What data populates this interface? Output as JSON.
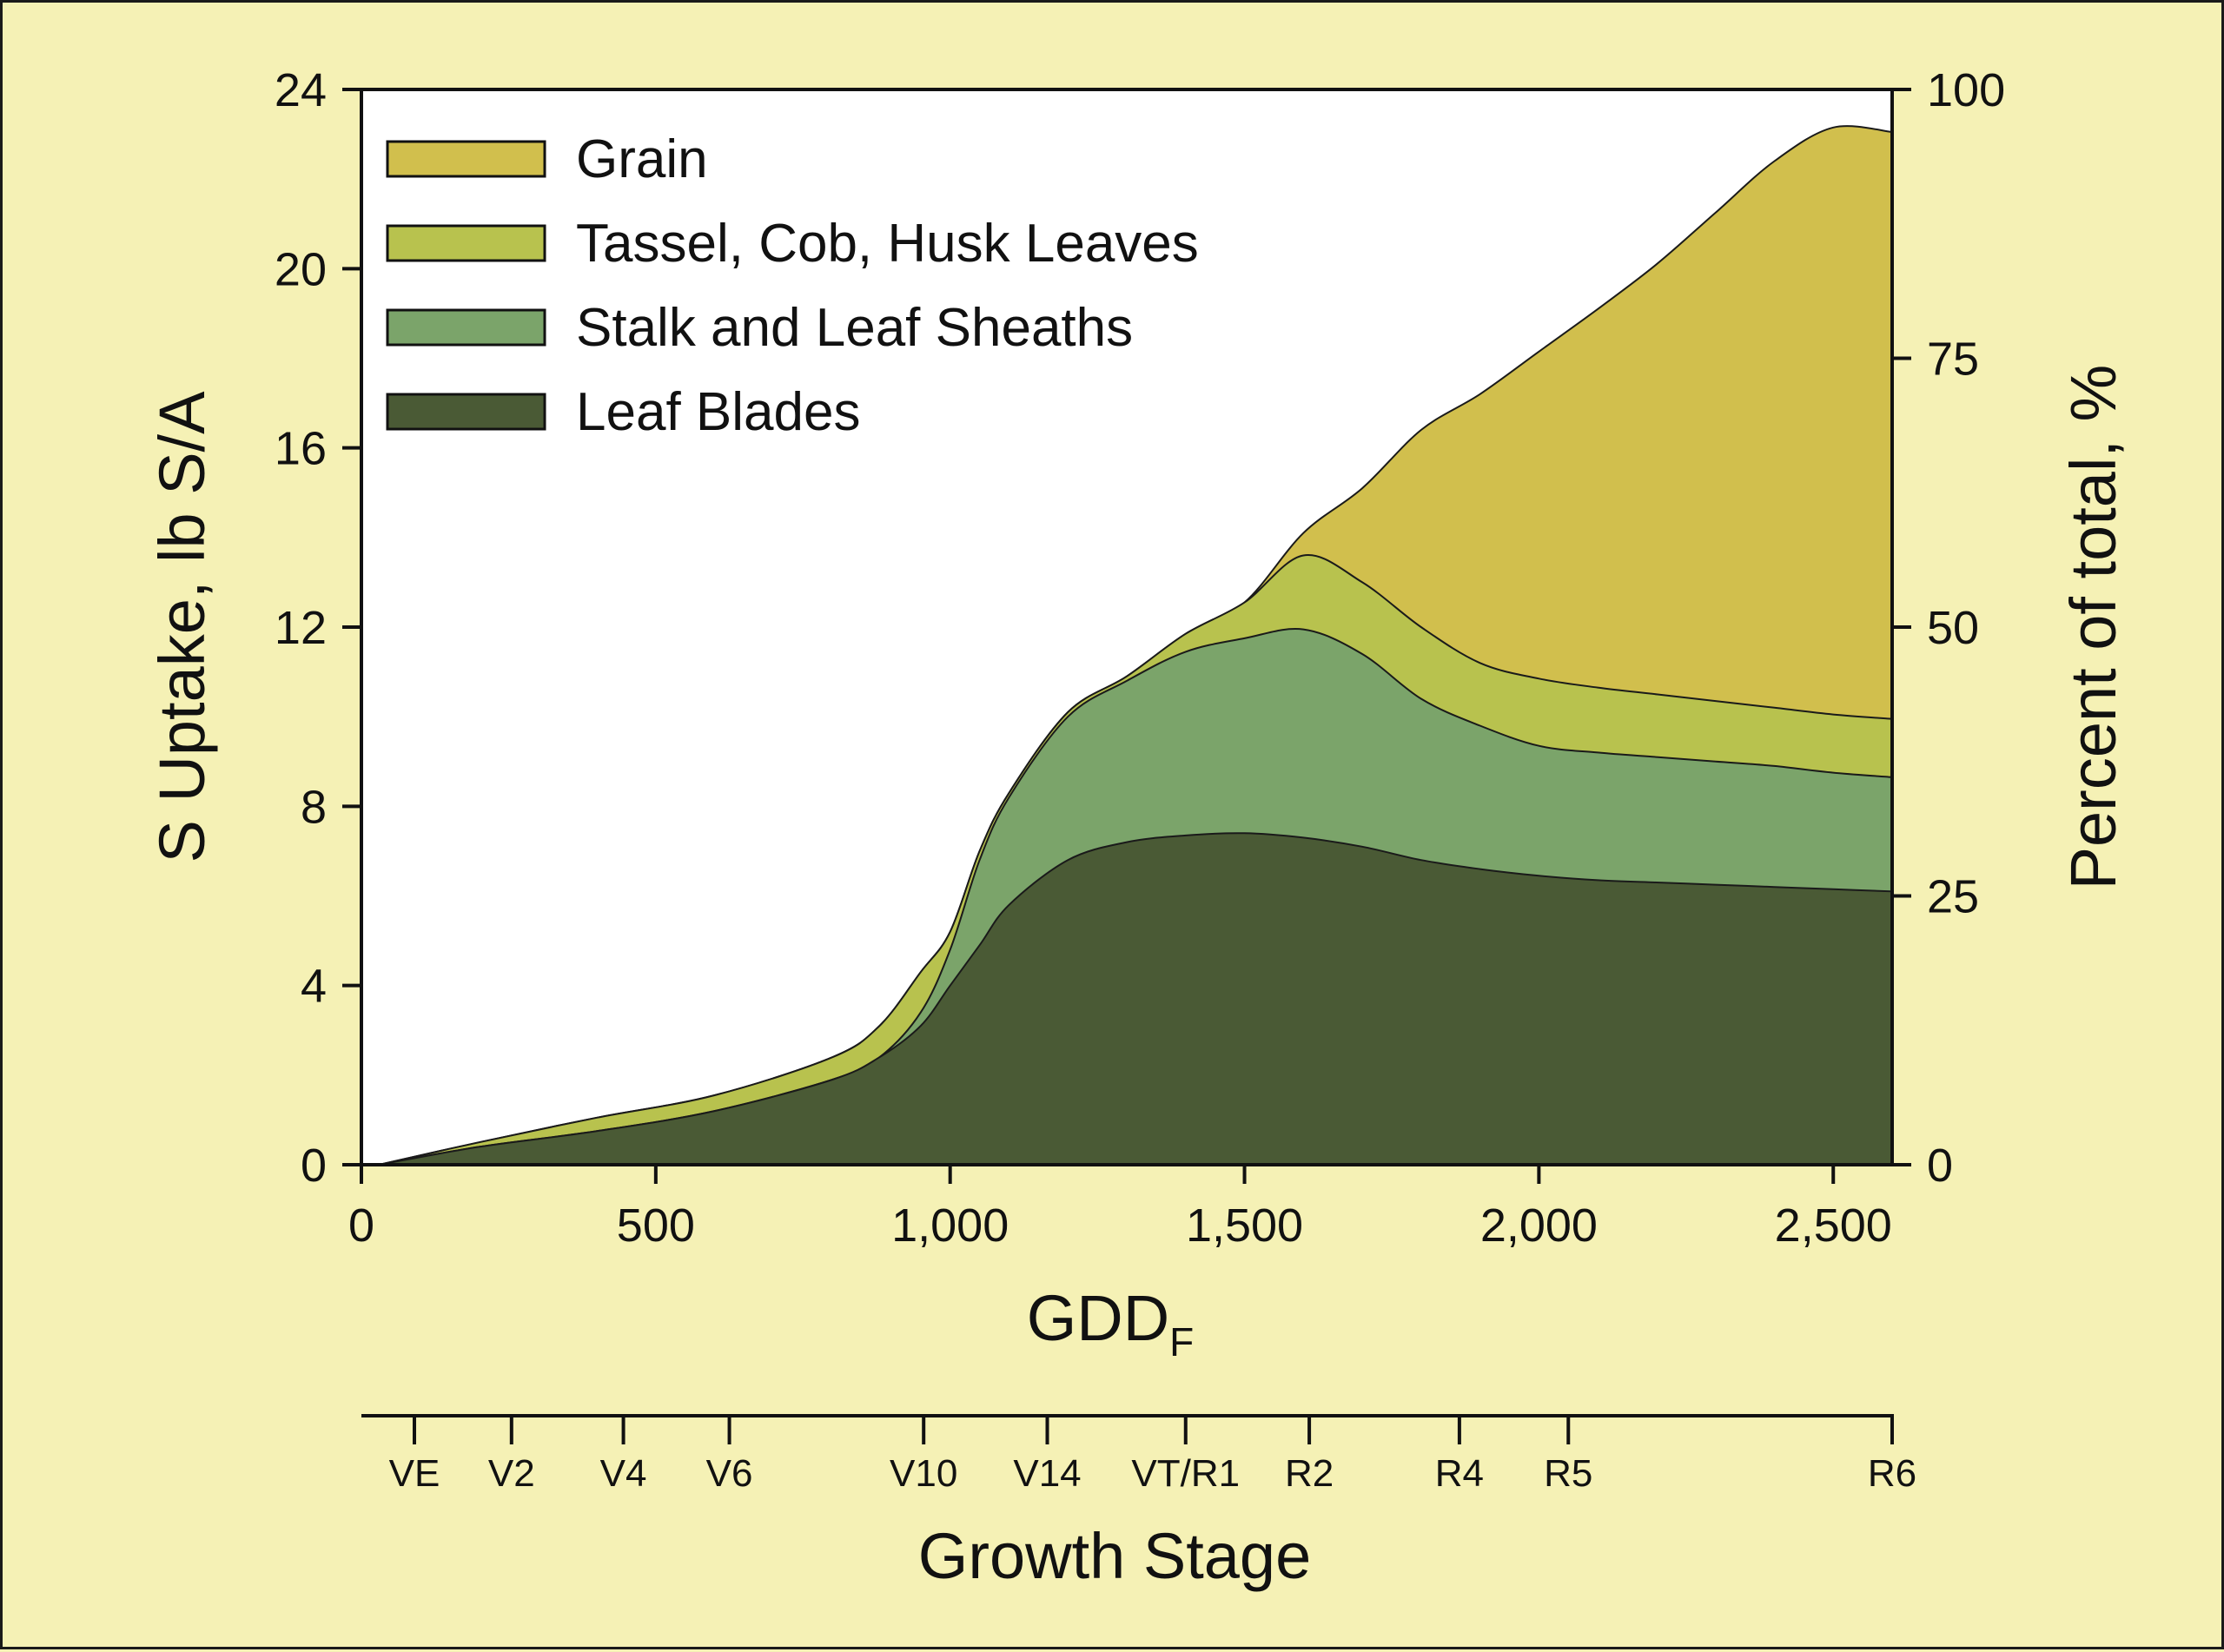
{
  "chart_data": {
    "type": "area",
    "stacked": true,
    "xlabel": "GDD",
    "xlabel_sub": "F",
    "ylabel": "S Uptake, lb S/A",
    "y2label": "Percent of total, %",
    "stage_axis_label": "Growth Stage",
    "xlim": [
      0,
      2600
    ],
    "ylim": [
      0,
      24
    ],
    "y2lim": [
      0,
      100
    ],
    "x_ticks": [
      0,
      500,
      1000,
      1500,
      2000,
      2500
    ],
    "x_tick_labels": [
      "0",
      "500",
      "1,000",
      "1,500",
      "2,000",
      "2,500"
    ],
    "y_ticks": [
      0,
      4,
      8,
      12,
      16,
      20,
      24
    ],
    "y_tick_labels": [
      "0",
      "4",
      "8",
      "12",
      "16",
      "20",
      "24"
    ],
    "y2_ticks": [
      0,
      25,
      50,
      75,
      100
    ],
    "y2_tick_labels": [
      "0",
      "25",
      "50",
      "75",
      "100"
    ],
    "legend_position": "top-left",
    "x": [
      30,
      200,
      400,
      600,
      800,
      880,
      950,
      1000,
      1050,
      1100,
      1200,
      1300,
      1400,
      1500,
      1600,
      1700,
      1800,
      1900,
      2000,
      2100,
      2200,
      2300,
      2400,
      2500,
      2600
    ],
    "series": [
      {
        "name": "Leaf Blades",
        "color": "#4a5a35",
        "values": [
          0,
          0.4,
          0.75,
          1.2,
          1.9,
          2.4,
          3.1,
          4.0,
          4.9,
          5.8,
          6.8,
          7.2,
          7.35,
          7.4,
          7.3,
          7.1,
          6.8,
          6.6,
          6.45,
          6.35,
          6.3,
          6.25,
          6.2,
          6.15,
          6.1
        ]
      },
      {
        "name": "Stalk and Leaf Sheaths",
        "color": "#7ba46a",
        "values": [
          0,
          0,
          0,
          0,
          0,
          0,
          0.3,
          0.8,
          1.9,
          2.4,
          3.2,
          3.6,
          4.1,
          4.35,
          4.65,
          4.3,
          3.6,
          3.2,
          2.9,
          2.85,
          2.8,
          2.75,
          2.7,
          2.6,
          2.55
        ]
      },
      {
        "name": "Tassel, Cob, Husk Leaves",
        "color": "#b8c24e",
        "values": [
          0,
          0.1,
          0.3,
          0.35,
          0.5,
          0.7,
          0.9,
          0.4,
          0.2,
          0.1,
          0.1,
          0.1,
          0.4,
          0.8,
          1.65,
          1.6,
          1.6,
          1.4,
          1.5,
          1.45,
          1.4,
          1.35,
          1.3,
          1.3,
          1.3
        ]
      },
      {
        "name": "Grain",
        "color": "#d1bf4d",
        "values": [
          0,
          0,
          0,
          0,
          0,
          0,
          0,
          0,
          0,
          0,
          0,
          0,
          0,
          0,
          0.5,
          2.1,
          4.4,
          6.0,
          7.3,
          8.45,
          9.6,
          10.9,
          12.2,
          13.1,
          13.1
        ]
      }
    ],
    "stages": [
      {
        "label": "VE",
        "x": 90
      },
      {
        "label": "V2",
        "x": 255
      },
      {
        "label": "V4",
        "x": 445
      },
      {
        "label": "V6",
        "x": 625
      },
      {
        "label": "V10",
        "x": 955
      },
      {
        "label": "V14",
        "x": 1165
      },
      {
        "label": "VT/R1",
        "x": 1400
      },
      {
        "label": "R2",
        "x": 1610
      },
      {
        "label": "R4",
        "x": 1865
      },
      {
        "label": "R5",
        "x": 2050
      },
      {
        "label": "R6",
        "x": 2600
      }
    ]
  }
}
